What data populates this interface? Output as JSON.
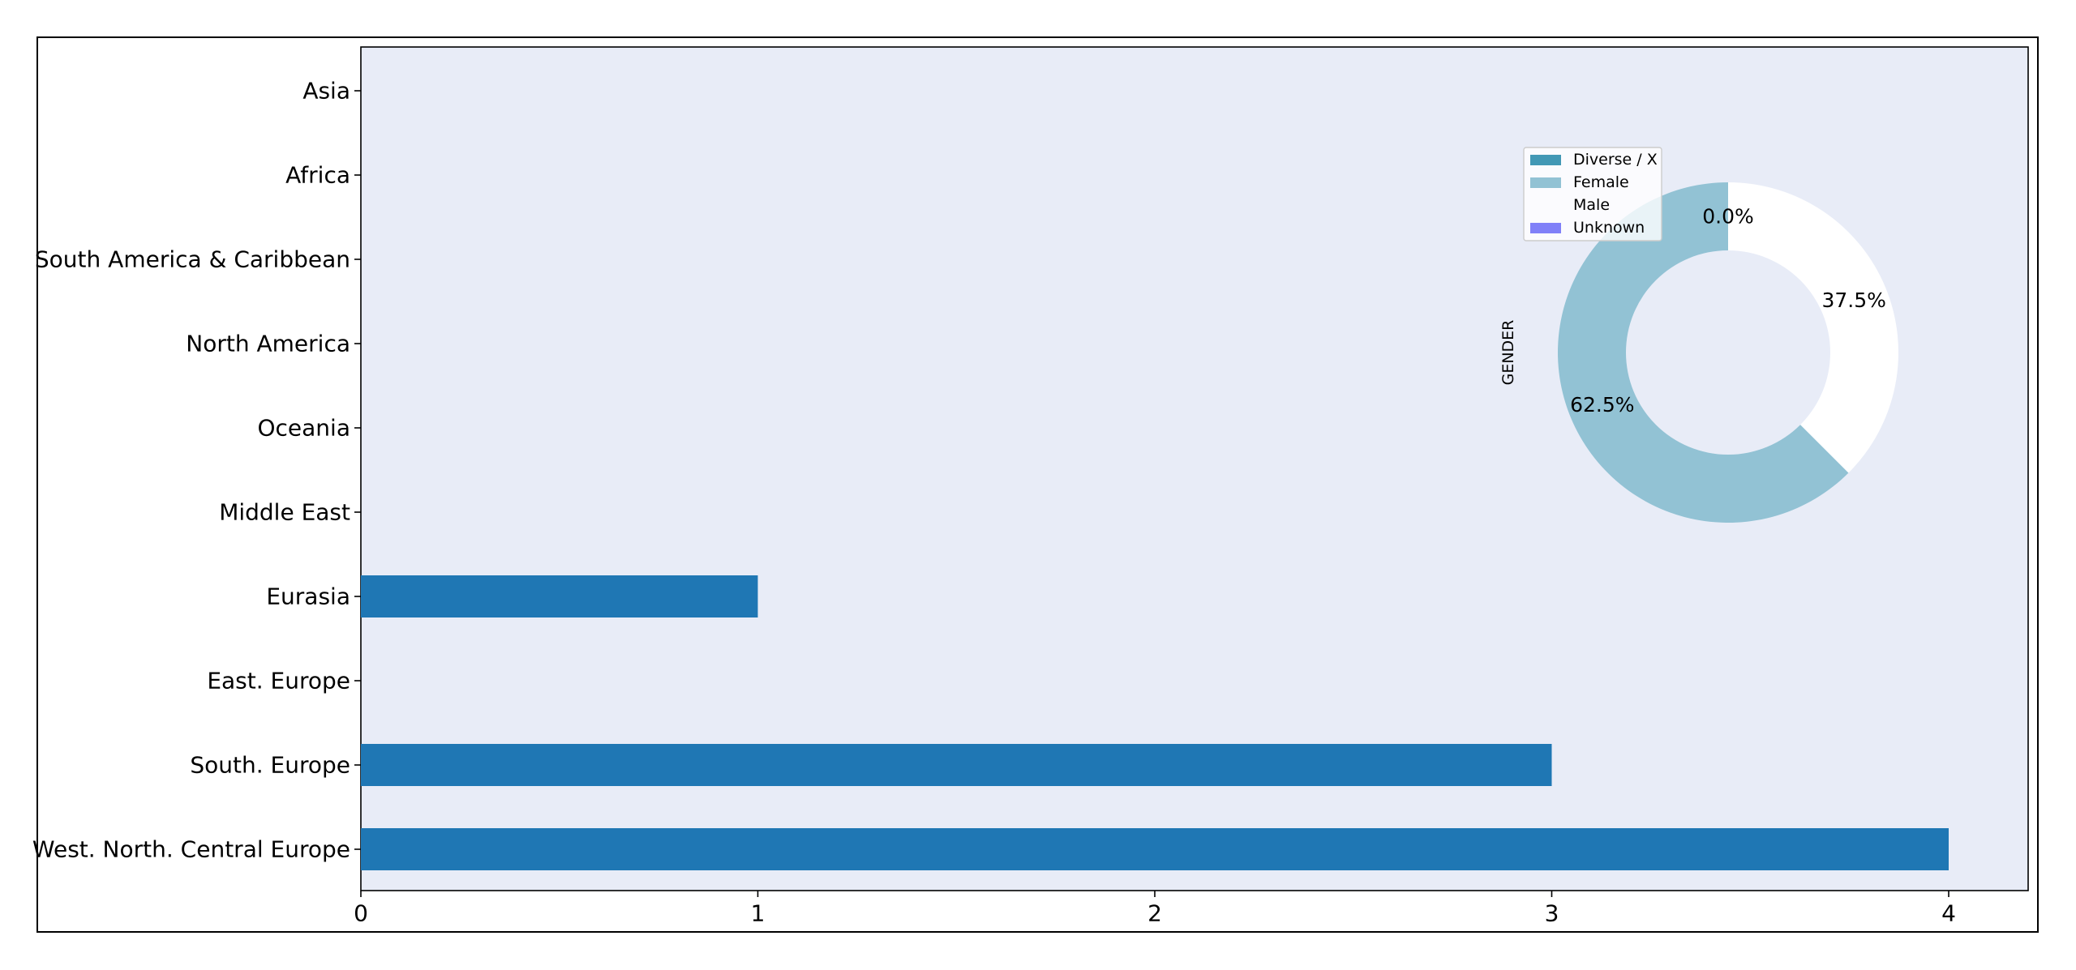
{
  "chart_data": [
    {
      "type": "bar",
      "orientation": "horizontal",
      "categories": [
        "Asia",
        "Africa",
        "South America & Caribbean",
        "North America",
        "Oceania",
        "Middle East",
        "Eurasia",
        "East. Europe",
        "South. Europe",
        "West. North. Central Europe"
      ],
      "values": [
        0,
        0,
        0,
        0,
        0,
        0,
        1,
        0,
        3,
        4
      ],
      "xticks": [
        "0",
        "1",
        "2",
        "3",
        "4"
      ],
      "xlim": [
        0,
        4.2
      ],
      "bar_color": "#1f77b4",
      "plot_background": "#e8ecf7",
      "grid": false
    },
    {
      "type": "pie",
      "style": "donut",
      "ylabel": "GENDER",
      "labels": [
        "Diverse / X",
        "Female",
        "Male",
        "Unknown"
      ],
      "values": [
        0.0,
        62.5,
        37.5,
        0.0
      ],
      "display_labels": [
        "0.0%",
        "62.5%",
        "37.5%",
        ""
      ],
      "colors": [
        "#4298b5",
        "#92c2d4",
        "#ffffff",
        "#8080f8"
      ],
      "legend_location": "upper-left of pie"
    }
  ]
}
